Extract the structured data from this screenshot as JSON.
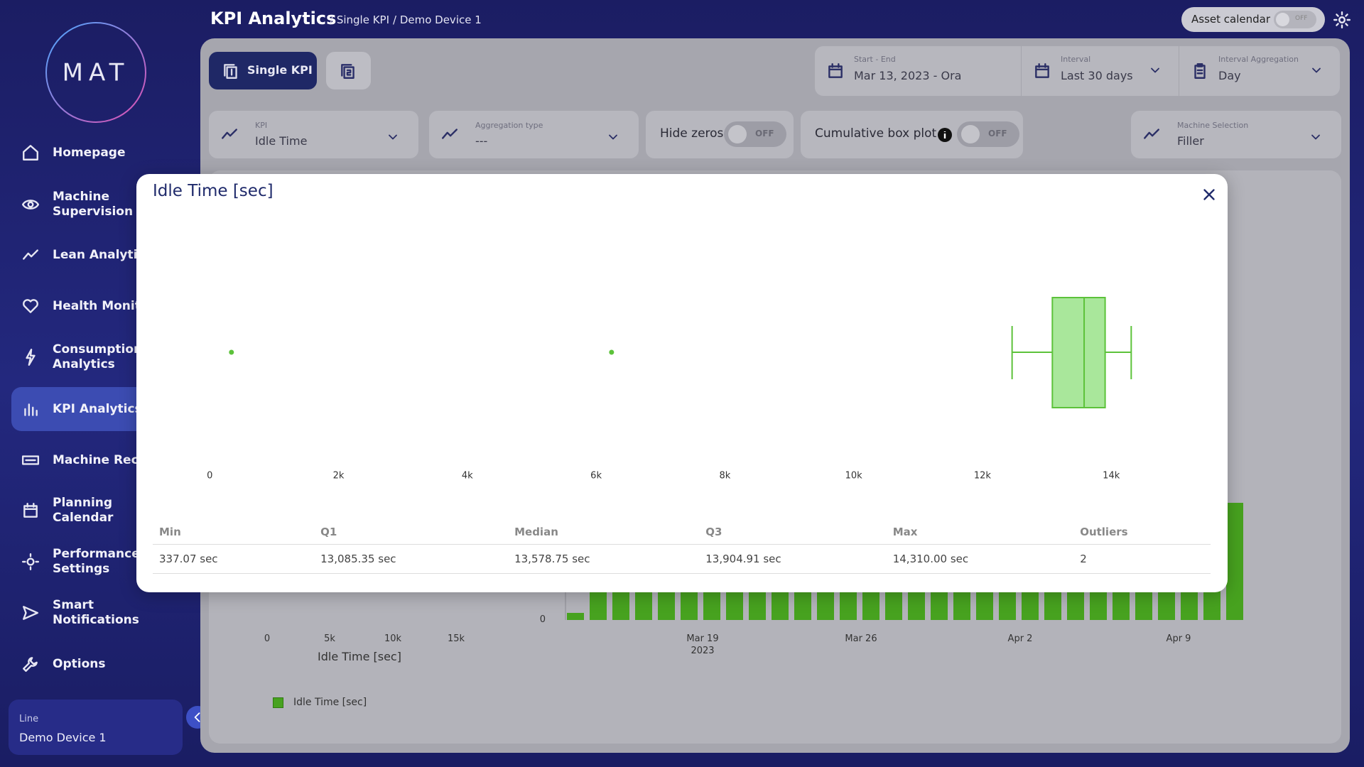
{
  "header": {
    "title": "KPI Analytics",
    "breadcrumbs": [
      "/ Single KPI",
      "/ Demo Device 1"
    ],
    "asset_calendar": {
      "label": "Asset calendar",
      "state": "OFF"
    }
  },
  "sidebar": {
    "logo": "MAT",
    "nav": [
      "Homepage",
      "Machine Supervision",
      "Lean Analytic",
      "Health Monito",
      "Consumption Analytics",
      "KPI Analytics",
      "Machine Reco",
      "Planning Calendar",
      "Performance Settings",
      "Smart Notifications",
      "Options"
    ],
    "active": 5,
    "line": {
      "label": "Line",
      "value": "Demo Device 1"
    }
  },
  "toolbar": {
    "tab": "Single KPI",
    "period": {
      "label": "Start - End",
      "value": "Mar 13, 2023 - Ora"
    },
    "interval": {
      "label": "Interval",
      "value": "Last 30 days"
    },
    "aggregation": {
      "label": "Interval Aggregation",
      "value": "Day"
    }
  },
  "filters": {
    "kpi": {
      "label": "KPI",
      "value": "Idle Time"
    },
    "aggregation_type": {
      "label": "Aggregation type",
      "value": "---"
    },
    "hide_zeros": {
      "label": "Hide zeros",
      "state": "OFF"
    },
    "cumulative_box_plot": {
      "label": "Cumulative box plot",
      "state": "OFF"
    },
    "machine_selection": {
      "label": "Machine Selection",
      "value": "Filler"
    }
  },
  "background_chart": {
    "x_ticks": [
      "0",
      "5k",
      "10k",
      "15k"
    ],
    "x_label": "Idle Time [sec]",
    "y_tick": "0",
    "date_ticks": [
      "Mar 19",
      "Mar 26",
      "Apr 2",
      "Apr 9"
    ],
    "year": "2023",
    "legend": "Idle Time [sec]"
  },
  "modal": {
    "title": "Idle Time [sec]",
    "chart_data": {
      "type": "box",
      "color": "#5cc23a",
      "box": {
        "whisker_low": 12460,
        "q1": 13085.35,
        "median": 13578.75,
        "q3": 13904.91,
        "whisker_high": 14310
      },
      "outliers": [
        337.07,
        6240
      ],
      "xlim": [
        -830,
        15520
      ],
      "xticks": [
        0,
        {
          "value": 2000,
          "label": "2k"
        },
        {
          "value": 4000,
          "label": "4k"
        },
        {
          "value": 6000,
          "label": "6k"
        },
        {
          "value": 8000,
          "label": "8k"
        },
        {
          "value": 10000,
          "label": "10k"
        },
        {
          "value": 12000,
          "label": "12k"
        },
        {
          "value": 14000,
          "label": "14k"
        }
      ]
    },
    "table": {
      "columns": [
        "Min",
        "Q1",
        "Median",
        "Q3",
        "Max",
        "Outliers"
      ],
      "rows": [
        [
          "337.07 sec",
          "13,085.35 sec",
          "13,578.75 sec",
          "13,904.91 sec",
          "14,310.00 sec",
          "2"
        ]
      ]
    }
  }
}
